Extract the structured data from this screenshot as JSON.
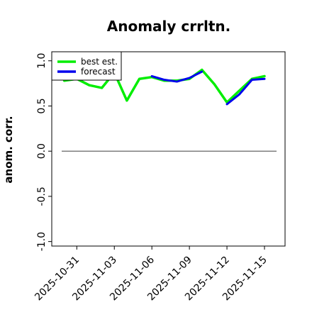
{
  "chart_data": {
    "type": "line",
    "title": "Anomaly crrltn.",
    "xlabel": "",
    "ylabel": "anom. corr.",
    "x": [
      "2025-10-30",
      "2025-10-31",
      "2025-11-01",
      "2025-11-02",
      "2025-11-03",
      "2025-11-04",
      "2025-11-05",
      "2025-11-06",
      "2025-11-07",
      "2025-11-08",
      "2025-11-09",
      "2025-11-10",
      "2025-11-11",
      "2025-11-12",
      "2025-11-13",
      "2025-11-14",
      "2025-11-15"
    ],
    "series": [
      {
        "name": "best est.",
        "color": "#00ee00",
        "values": [
          0.78,
          0.8,
          0.73,
          0.7,
          0.87,
          0.56,
          0.8,
          0.82,
          0.78,
          0.78,
          0.8,
          0.9,
          0.74,
          0.54,
          0.67,
          0.8,
          0.83
        ]
      },
      {
        "name": "forecast",
        "color": "#0000ee",
        "values": [
          null,
          null,
          null,
          null,
          null,
          null,
          null,
          0.83,
          0.79,
          0.77,
          0.81,
          0.88,
          null,
          0.52,
          0.63,
          0.79,
          0.8
        ]
      }
    ],
    "reference_line": {
      "y": 0.0,
      "color": "#555555"
    },
    "ylim": [
      -1.05,
      1.1
    ],
    "xlim": [
      "2025-10-29",
      "2025-11-15"
    ],
    "yticks": [
      -1.0,
      -0.5,
      0.0,
      0.5,
      1.0
    ],
    "ytick_labels": [
      "-1.0",
      "-0.5",
      "0.0",
      "0.5",
      "1.0"
    ],
    "xticks": [
      "2025-10-31",
      "2025-11-03",
      "2025-11-06",
      "2025-11-09",
      "2025-11-12",
      "2025-11-15"
    ],
    "xtick_labels": [
      "2025-10-31",
      "2025-11-03",
      "2025-11-06",
      "2025-11-09",
      "2025-11-12",
      "2025-11-15"
    ],
    "xtick_label_colors": [
      "#000000",
      "#000000",
      "#228B22",
      "#000000",
      "#000000",
      "#000000"
    ],
    "grid": false,
    "legend_position": "top-left"
  }
}
